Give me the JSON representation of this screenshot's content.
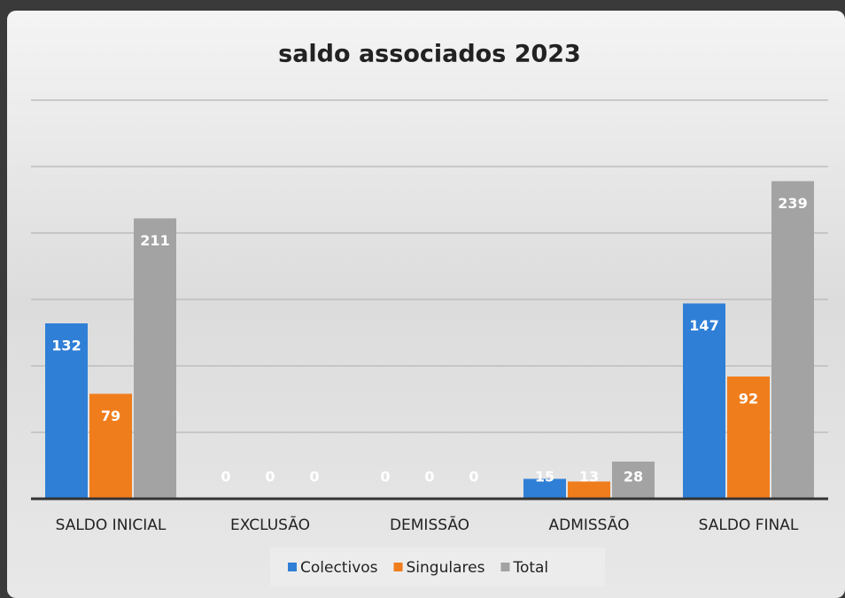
{
  "chart_data": {
    "type": "bar",
    "title": "saldo associados 2023",
    "categories": [
      "SALDO INICIAL",
      "EXCLUSÃO",
      "DEMISSÃO",
      "ADMISSÃO",
      "SALDO FINAL"
    ],
    "series": [
      {
        "name": "Colectivos",
        "color": "#2f7fd6",
        "values": [
          132,
          0,
          0,
          15,
          147
        ]
      },
      {
        "name": "Singulares",
        "color": "#f07d1c",
        "values": [
          79,
          0,
          0,
          13,
          92
        ]
      },
      {
        "name": "Total",
        "color": "#a3a3a3",
        "values": [
          211,
          0,
          0,
          28,
          239
        ]
      }
    ],
    "ylim": [
      0,
      300
    ],
    "yticks": [
      0,
      50,
      100,
      150,
      200,
      250,
      300
    ],
    "grid": true,
    "legend": "bottom"
  }
}
